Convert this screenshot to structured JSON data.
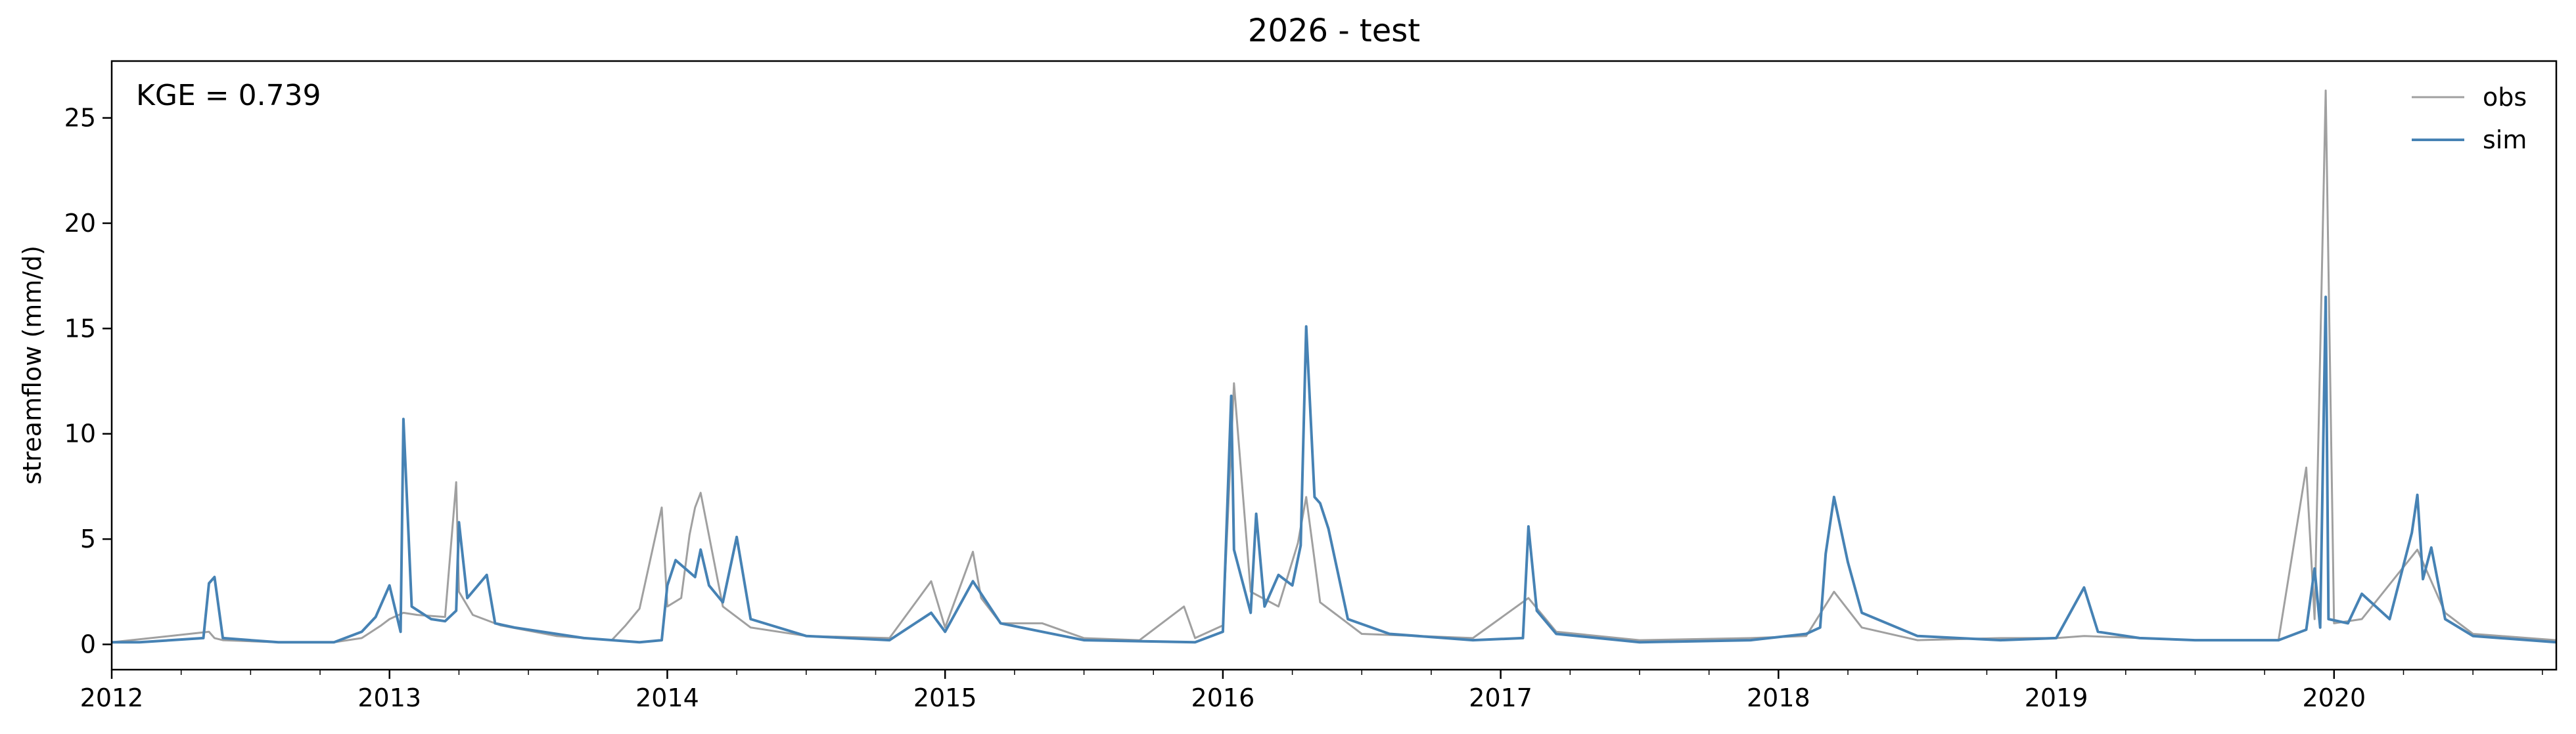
{
  "chart_data": {
    "type": "line",
    "title": "2026 - test",
    "xlabel": "",
    "ylabel": "streamflow (mm/d)",
    "xlim": [
      2012.0,
      2020.8
    ],
    "ylim": [
      -1.2,
      27.7
    ],
    "x_ticks": [
      2012,
      2013,
      2014,
      2015,
      2016,
      2017,
      2018,
      2019,
      2020
    ],
    "x_tick_labels": [
      "2012",
      "2013",
      "2014",
      "2015",
      "2016",
      "2017",
      "2018",
      "2019",
      "2020"
    ],
    "y_ticks": [
      0,
      5,
      10,
      15,
      20,
      25
    ],
    "y_tick_labels": [
      "0",
      "5",
      "10",
      "15",
      "20",
      "25"
    ],
    "grid": false,
    "legend_position": "top-right",
    "annotation": "KGE = 0.739",
    "series": [
      {
        "name": "obs",
        "color": "#a0a0a0",
        "x": [
          2012.0,
          2012.35,
          2012.37,
          2012.4,
          2012.6,
          2012.8,
          2012.9,
          2012.97,
          2013.0,
          2013.05,
          2013.1,
          2013.2,
          2013.24,
          2013.25,
          2013.3,
          2013.4,
          2013.6,
          2013.8,
          2013.85,
          2013.9,
          2013.98,
          2014.0,
          2014.05,
          2014.08,
          2014.1,
          2014.12,
          2014.2,
          2014.3,
          2014.5,
          2014.8,
          2014.95,
          2015.0,
          2015.1,
          2015.13,
          2015.2,
          2015.35,
          2015.5,
          2015.7,
          2015.86,
          2015.9,
          2016.0,
          2016.04,
          2016.1,
          2016.2,
          2016.27,
          2016.3,
          2016.35,
          2016.5,
          2016.7,
          2016.9,
          2017.1,
          2017.2,
          2017.5,
          2017.9,
          2018.1,
          2018.2,
          2018.3,
          2018.5,
          2018.8,
          2019.0,
          2019.1,
          2019.3,
          2019.5,
          2019.8,
          2019.9,
          2019.93,
          2019.97,
          2020.0,
          2020.1,
          2020.3,
          2020.4,
          2020.5,
          2020.8
        ],
        "y": [
          0.1,
          0.6,
          0.3,
          0.2,
          0.1,
          0.1,
          0.3,
          0.9,
          1.2,
          1.5,
          1.4,
          1.3,
          7.7,
          2.5,
          1.4,
          0.9,
          0.4,
          0.2,
          0.9,
          1.7,
          6.5,
          1.8,
          2.2,
          5.2,
          6.5,
          7.2,
          1.8,
          0.8,
          0.4,
          0.3,
          3.0,
          0.8,
          4.4,
          2.2,
          1.0,
          1.0,
          0.3,
          0.2,
          1.8,
          0.3,
          0.9,
          12.4,
          2.5,
          1.8,
          4.8,
          7.0,
          2.0,
          0.5,
          0.4,
          0.3,
          2.2,
          0.6,
          0.2,
          0.3,
          0.4,
          2.5,
          0.8,
          0.2,
          0.3,
          0.3,
          0.4,
          0.3,
          0.2,
          0.2,
          8.4,
          1.2,
          26.3,
          1.0,
          1.2,
          4.5,
          1.5,
          0.5,
          0.2
        ]
      },
      {
        "name": "sim",
        "color": "#4682b4",
        "x": [
          2012.0,
          2012.1,
          2012.33,
          2012.35,
          2012.37,
          2012.4,
          2012.6,
          2012.8,
          2012.9,
          2012.95,
          2013.0,
          2013.04,
          2013.05,
          2013.08,
          2013.15,
          2013.2,
          2013.24,
          2013.25,
          2013.28,
          2013.35,
          2013.38,
          2013.45,
          2013.7,
          2013.9,
          2013.98,
          2014.0,
          2014.03,
          2014.1,
          2014.12,
          2014.15,
          2014.2,
          2014.25,
          2014.3,
          2014.5,
          2014.8,
          2014.95,
          2015.0,
          2015.1,
          2015.15,
          2015.2,
          2015.35,
          2015.5,
          2015.9,
          2016.0,
          2016.03,
          2016.04,
          2016.1,
          2016.12,
          2016.15,
          2016.2,
          2016.25,
          2016.28,
          2016.3,
          2016.33,
          2016.35,
          2016.38,
          2016.45,
          2016.6,
          2016.9,
          2017.08,
          2017.1,
          2017.13,
          2017.2,
          2017.5,
          2017.9,
          2018.1,
          2018.15,
          2018.17,
          2018.2,
          2018.25,
          2018.3,
          2018.5,
          2018.8,
          2019.0,
          2019.1,
          2019.15,
          2019.3,
          2019.5,
          2019.8,
          2019.9,
          2019.93,
          2019.95,
          2019.97,
          2019.98,
          2020.05,
          2020.1,
          2020.2,
          2020.28,
          2020.3,
          2020.32,
          2020.35,
          2020.4,
          2020.5,
          2020.8
        ],
        "y": [
          0.1,
          0.1,
          0.3,
          2.9,
          3.2,
          0.3,
          0.1,
          0.1,
          0.6,
          1.3,
          2.8,
          0.6,
          10.7,
          1.8,
          1.2,
          1.1,
          1.6,
          5.8,
          2.2,
          3.3,
          1.0,
          0.8,
          0.3,
          0.1,
          0.2,
          2.8,
          4.0,
          3.2,
          4.5,
          2.8,
          2.0,
          5.1,
          1.2,
          0.4,
          0.2,
          1.5,
          0.6,
          3.0,
          2.0,
          1.0,
          0.6,
          0.2,
          0.1,
          0.6,
          11.8,
          4.5,
          1.5,
          6.2,
          1.8,
          3.3,
          2.8,
          4.7,
          15.1,
          7.0,
          6.7,
          5.5,
          1.2,
          0.5,
          0.2,
          0.3,
          5.6,
          1.6,
          0.5,
          0.1,
          0.2,
          0.5,
          0.8,
          4.3,
          7.0,
          3.9,
          1.5,
          0.4,
          0.2,
          0.3,
          2.7,
          0.6,
          0.3,
          0.2,
          0.2,
          0.7,
          3.6,
          0.8,
          16.5,
          1.2,
          1.0,
          2.4,
          1.2,
          5.3,
          7.1,
          3.1,
          4.6,
          1.2,
          0.4,
          0.1
        ]
      }
    ]
  }
}
